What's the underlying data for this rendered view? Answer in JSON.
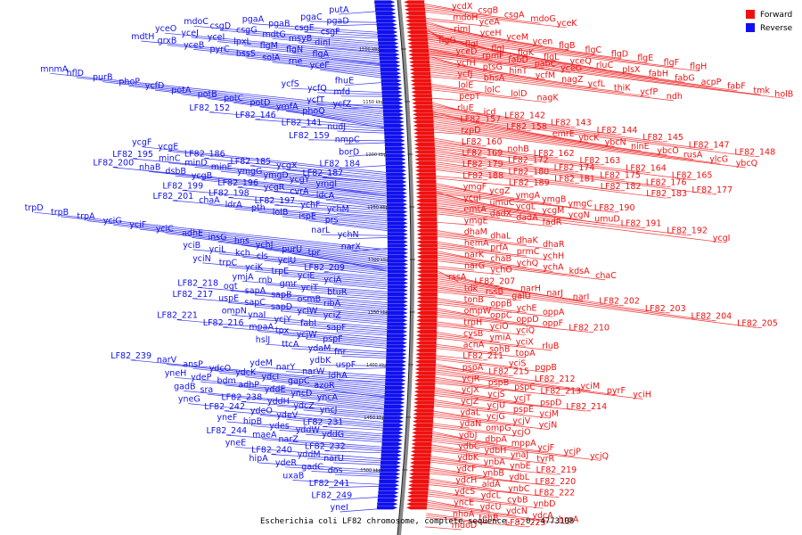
{
  "caption": "Escherichia coli LF82 chromosome, complete sequence. - 0..4773108",
  "legend": [
    {
      "label": "Forward",
      "color": "#ee1111"
    },
    {
      "label": "Reverse",
      "color": "#1111ee"
    }
  ],
  "colors": {
    "forward": "#ee1111",
    "reverse": "#1111ee",
    "backbone": "#888888"
  },
  "ticks": [
    "1100 kbp",
    "1150 kbp",
    "1200 kbp",
    "1250 kbp",
    "1300 kbp",
    "1350 kbp",
    "1400 kbp",
    "1450 kbp",
    "1500 kbp"
  ],
  "forward_rows": [
    [
      "ycdX",
      "csgB",
      "csgA",
      "mdoG",
      "yceK"
    ],
    [
      "mdoH",
      "yceA"
    ],
    [
      "rimJ",
      "yceH",
      "yceM",
      "ycen",
      "flgB",
      "flgC",
      "flgD",
      "flgE",
      "flgF",
      "flgH"
    ],
    [
      "flgG",
      "flgI",
      "flgJ",
      "flgK",
      "flgL",
      "yceQ",
      "rluC",
      "plsX",
      "fabH",
      "fabG",
      "acpP",
      "fabF",
      "tmk",
      "holB"
    ],
    [
      "yceD",
      "rpmF",
      "fabD",
      "pabC",
      "yceG"
    ],
    [
      "ycfH",
      "ptsG",
      "hinT",
      "ycfM",
      "nagZ",
      "ycfL",
      "thiK",
      "ycfP",
      "ndh"
    ],
    [
      "ycfJ",
      "bhsA"
    ],
    [
      "lolE",
      "lolC",
      "lolD",
      "nagK"
    ],
    [
      "pepT"
    ],
    [
      "rluE",
      "icd",
      "LF82_142",
      "LF82_143",
      "LF82_144",
      "LF82_145",
      "LF82_147",
      "LF82_148"
    ],
    [
      "LF82_157",
      "LF82_158",
      "emrE",
      "ybcK",
      "ybcN",
      "ninE",
      "ybcO",
      "rusA",
      "ylcG",
      "ybcQ"
    ],
    [
      "rzpD"
    ],
    [
      "LF82_160",
      "nohB",
      "LF82_162",
      "LF82_163",
      "LF82_164",
      "LF82_165"
    ],
    [
      "LF82_169",
      "LF82_172",
      "LF82_174",
      "LF82_175",
      "LF82_176",
      "LF82_177"
    ],
    [
      "LF82_179",
      "LF82_180",
      "LF82_181",
      "LF82_182",
      "LF82_183"
    ],
    [
      "LF82_188",
      "LF82_189"
    ],
    [
      "ymgF",
      "ycgZ",
      "ymgA",
      "ymgB",
      "ymgC",
      "LF82_190"
    ],
    [
      "ycgI",
      "umuC",
      "ycgL",
      "ycgM",
      "ycgN",
      "umuD",
      "LF82_191",
      "LF82_192",
      "ycgI"
    ],
    [
      "emtA",
      "dadX",
      "dadA",
      "fadR"
    ],
    [
      "ymgE"
    ],
    [
      "dhaM",
      "dhaL",
      "dhaK",
      "dhaR"
    ],
    [
      "hemA",
      "prfA",
      "prmC",
      "ychH"
    ],
    [
      "narK",
      "chaB",
      "ychQ",
      "ychA",
      "kdsA",
      "chaC"
    ],
    [
      "narG",
      "ychO"
    ],
    [
      "rssA",
      "LF82_207",
      "narH",
      "narJ",
      "narI",
      "LF82_202",
      "LF82_203",
      "LF82_204",
      "LF82_205"
    ],
    [
      "tdk",
      "rssB",
      "galU"
    ],
    [
      "tonB",
      "oppB",
      "ychE",
      "oppA"
    ],
    [
      "ompW",
      "oppC",
      "oppD",
      "oppF",
      "LF82_210"
    ],
    [
      "trpH",
      "yciO",
      "yciQ"
    ],
    [
      "cysB",
      "ymiA",
      "yciX",
      "rluB"
    ],
    [
      "acnA",
      "sohB",
      "topA"
    ],
    [
      "LF82_211",
      "yciS",
      "pgpB"
    ],
    [
      "pspA",
      "LF82_215",
      "LF82_212",
      "yciM",
      "pyrF",
      "yciH"
    ],
    [
      "ycjR",
      "pspB",
      "pspC",
      "LF82_213"
    ],
    [
      "ycjX",
      "ycjS",
      "ycjT",
      "pspD",
      "LF82_214"
    ],
    [
      "ycjZ",
      "ycjU",
      "pspE",
      "ycjM"
    ],
    [
      "ydaL",
      "ycjG",
      "ycjV",
      "ycjN"
    ],
    [
      "ydaN",
      "ompG",
      "ycjO"
    ],
    [
      "ydbJ",
      "dbpA",
      "mppA",
      "ycjF",
      "ycjP",
      "ycjQ"
    ],
    [
      "ydbC",
      "ydbH",
      "ynaJ",
      "tyrR"
    ],
    [
      "ydbK",
      "ynbA",
      "ynbE",
      "LF82_219"
    ],
    [
      "ydcF",
      "ynbB",
      "ydbL",
      "LF82_220"
    ],
    [
      "ydcH",
      "aldA",
      "ynbC",
      "LF82_222"
    ],
    [
      "ydcS",
      "ydcL",
      "cybB",
      "ynbD"
    ],
    [
      "yncE",
      "ydcU",
      "ydcN",
      "ydcA",
      "hrpA"
    ],
    [
      "nhoA",
      "tehB",
      "LF82_223"
    ],
    [
      "mdoD"
    ]
  ],
  "reverse_rows": [
    [
      "putA"
    ],
    [
      "pgaC",
      "pgaD"
    ],
    [
      "pgaA",
      "pgaB",
      "csgE",
      "csgF"
    ],
    [
      "mdoC",
      "csgD",
      "csgG",
      "mdtG",
      "msyB",
      "dinI"
    ],
    [
      "yceO",
      "yceJ",
      "yceI",
      "lpxL",
      "flgM",
      "flgN",
      "flgA"
    ],
    [
      "mdtH",
      "grxB",
      "yceB",
      "pyrC",
      "bssS",
      "solA",
      "rne",
      "yceF"
    ],
    [
      "fhuE"
    ],
    [
      "ycfS",
      "ycfQ",
      "mfd"
    ],
    [
      "ycfT",
      "ycfZ"
    ],
    [
      "mnmA",
      "hflD",
      "purB",
      "phoP",
      "ycfD",
      "potA",
      "potB",
      "potC",
      "potD",
      "ymfA",
      "phoQ"
    ],
    [
      "LF82_152",
      "LF82_146",
      "LF82_141",
      "nudJ"
    ],
    [
      "LF82_159",
      "nmpC"
    ],
    [
      "borD"
    ],
    [
      "LF82_184"
    ],
    [
      "ycgF",
      "ycgE",
      "LF82_186",
      "LF82_185",
      "ycgX",
      "LF82_187"
    ],
    [
      "LF82_195",
      "minC",
      "minD",
      "minE",
      "ymgG",
      "ymgD",
      "ycgY",
      "ymgI"
    ],
    [
      "LF82_200",
      "nhaB",
      "dsbB",
      "ycgB",
      "LF82_196",
      "ycgR",
      "cvrA",
      "ldcA"
    ],
    [
      "LF82_199",
      "LF82_198",
      "LF82_197",
      "ychF",
      "ychM"
    ],
    [
      "LF82_201",
      "chaA",
      "ldrA",
      "pth",
      "lolB",
      "ispE",
      "prs"
    ],
    [
      "narL",
      "ychN"
    ],
    [
      "narX"
    ],
    [
      "trpD",
      "trpB",
      "trpA",
      "yciG",
      "yciF",
      "yciC",
      "adhE",
      "insG",
      "hns",
      "ychJ",
      "purU",
      "tpr"
    ],
    [
      "yciB",
      "yciL",
      "kch",
      "cls",
      "yciU",
      "LF82_209"
    ],
    [
      "yciN",
      "trpC",
      "yciK",
      "trpE",
      "yciE",
      "yciA"
    ],
    [
      "ymjA",
      "rnb",
      "gmr",
      "yciT",
      "btuR"
    ],
    [
      "LF82_218",
      "ogt",
      "sapA",
      "sapB",
      "osmB",
      "ribA"
    ],
    [
      "LF82_217",
      "uspE",
      "sapC",
      "sapD",
      "yciW",
      "yciZ"
    ],
    [
      "ompN",
      "ynaI",
      "ycjY",
      "fabI",
      "sapF"
    ],
    [
      "LF82_221",
      "LF82_216",
      "mpaA",
      "tpx",
      "ycjW",
      "pspF"
    ],
    [
      "hslJ",
      "ttcA",
      "ydaM",
      "fnr"
    ],
    [
      "ydbK",
      "uspF"
    ],
    [
      "ydeM",
      "narY",
      "narW",
      "ldhA"
    ],
    [
      "LF82_239",
      "narV",
      "ansP",
      "ydcO",
      "ydcK",
      "ydcI",
      "gapC",
      "azoR"
    ],
    [
      "yneH",
      "ydeP",
      "bdm",
      "adhP",
      "yddE",
      "yncD",
      "yncA"
    ],
    [
      "gadB",
      "sra",
      "LF82_238",
      "yddH",
      "ydcZ",
      "yncJ"
    ],
    [
      "yneG",
      "LF82_242",
      "ydeO",
      "ydeV",
      "LF82_231"
    ],
    [
      "yneF",
      "hipB",
      "ydes",
      "yddW",
      "yddG"
    ],
    [
      "LF82_244",
      "maeA",
      "narZ",
      "LF82_232"
    ],
    [
      "yneE",
      "LF82_240",
      "yddM",
      "narU"
    ],
    [
      "hipA",
      "ydeR",
      "gadC",
      "dos"
    ],
    [
      "uxaB",
      "LF82_241"
    ],
    [
      "LF82_249"
    ],
    [
      "yneI"
    ]
  ]
}
